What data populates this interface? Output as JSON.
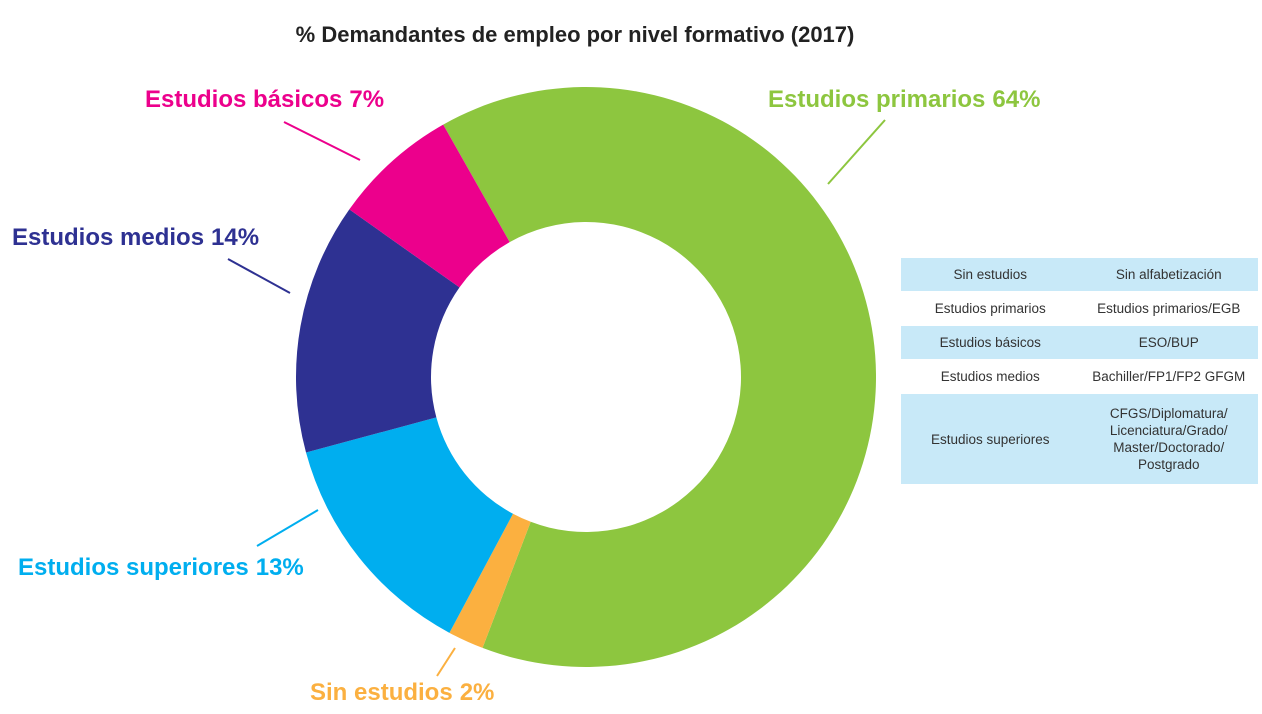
{
  "chart_data": {
    "type": "donut",
    "title": "% Demandantes de empleo por nivel formativo (2017)",
    "categories": [
      "Estudios primarios",
      "Sin estudios",
      "Estudios superiores",
      "Estudios medios",
      "Estudios básicos"
    ],
    "values": [
      64,
      2,
      13,
      14,
      7
    ],
    "value_labels": [
      "64%",
      "2%",
      "13%",
      "14%",
      "7%"
    ],
    "colors": [
      "#8dc63f",
      "#fbb040",
      "#00aeef",
      "#2e3192",
      "#ec008c"
    ]
  },
  "table": {
    "rows": [
      [
        "Sin estudios",
        "Sin alfabetización"
      ],
      [
        "Estudios primarios",
        "Estudios primarios/EGB"
      ],
      [
        "Estudios básicos",
        "ESO/BUP"
      ],
      [
        "Estudios medios",
        "Bachiller/FP1/FP2 GFGM"
      ],
      [
        "Estudios superiores",
        "CFGS/Diplomatura/\nLicenciatura/Grado/\nMaster/Doctorado/\nPostgrado"
      ]
    ]
  }
}
